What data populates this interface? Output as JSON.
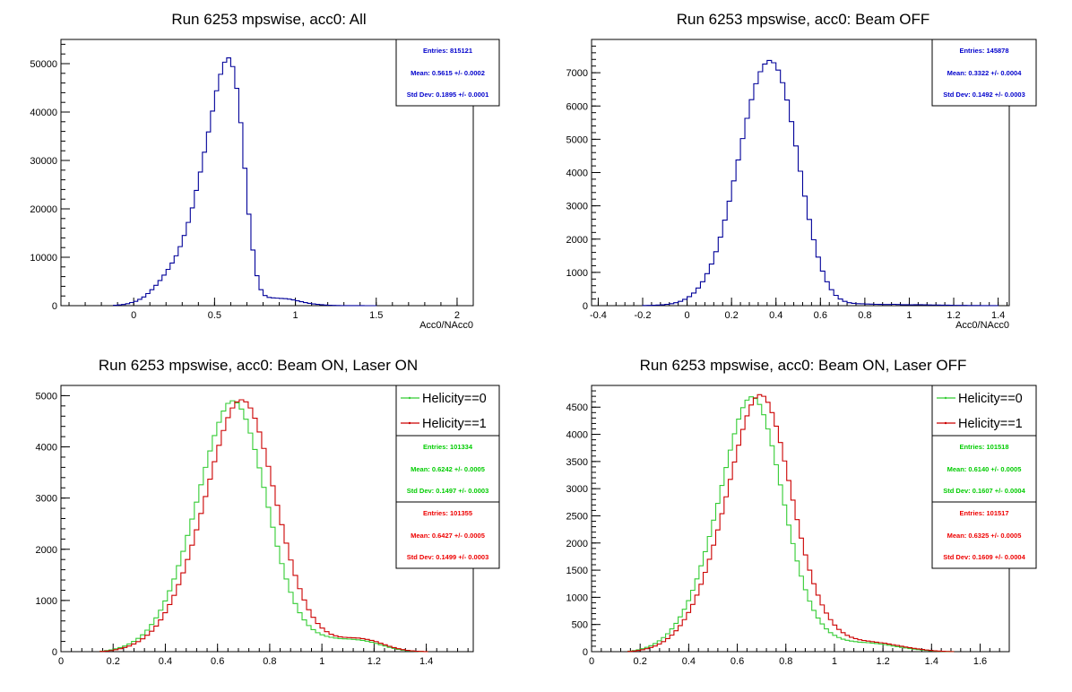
{
  "colors": {
    "blue": "#000099",
    "green": "#33cc33",
    "red": "#cc0000",
    "stat_green": "#00cc00",
    "stat_red": "#ee0000",
    "stat_blue": "#0000cc"
  },
  "chart_data": [
    {
      "type": "histogram",
      "title": "Run 6253 mpswise, acc0: All",
      "xlabel": "Acc0/NAcc0",
      "ylabel": "",
      "xlim": [
        -0.45,
        2.1
      ],
      "ylim": [
        0,
        55000
      ],
      "xticks": [
        0,
        0.5,
        1,
        1.5,
        2
      ],
      "xtick_labels": [
        "0",
        "0.5",
        "1",
        "1.5",
        "2"
      ],
      "yticks": [
        0,
        10000,
        20000,
        30000,
        40000,
        50000
      ],
      "ytick_labels": [
        "0",
        "10000",
        "20000",
        "30000",
        "40000",
        "50000"
      ],
      "series": [
        {
          "color": "blue",
          "bin_width": 0.025,
          "bin_edges": [
            -0.125,
            1.5
          ],
          "values": [
            80,
            150,
            250,
            400,
            650,
            900,
            1300,
            1800,
            2500,
            3300,
            4200,
            5200,
            6300,
            7500,
            8800,
            10300,
            12200,
            14500,
            17200,
            20200,
            23800,
            27600,
            31700,
            35900,
            40200,
            44400,
            47800,
            50300,
            51200,
            49400,
            44900,
            37800,
            28400,
            18900,
            11500,
            6200,
            3300,
            2100,
            1700,
            1600,
            1550,
            1500,
            1450,
            1350,
            1200,
            1000,
            820,
            640,
            480,
            360,
            260,
            190,
            130,
            90,
            60,
            40,
            25,
            15,
            10,
            8,
            5,
            3,
            2,
            1,
            1
          ]
        }
      ],
      "stats": [
        {
          "color": "stat_blue",
          "entries": "Entries: 815121",
          "mean": "Mean: 0.5615 +/- 0.0002",
          "std": "Std Dev: 0.1895 +/- 0.0001"
        }
      ]
    },
    {
      "type": "histogram",
      "title": "Run 6253 mpswise, acc0: Beam OFF",
      "xlabel": "Acc0/NAcc0",
      "ylabel": "",
      "xlim": [
        -0.43,
        1.45
      ],
      "ylim": [
        0,
        8000
      ],
      "xticks": [
        -0.4,
        -0.2,
        0,
        0.2,
        0.4,
        0.6,
        0.8,
        1,
        1.2,
        1.4
      ],
      "xtick_labels": [
        "-0.4",
        "-0.2",
        "0",
        "0.2",
        "0.4",
        "0.6",
        "0.8",
        "1",
        "1.2",
        "1.4"
      ],
      "yticks": [
        0,
        1000,
        2000,
        3000,
        4000,
        5000,
        6000,
        7000
      ],
      "ytick_labels": [
        "0",
        "1000",
        "2000",
        "3000",
        "4000",
        "5000",
        "6000",
        "7000"
      ],
      "series": [
        {
          "color": "blue",
          "bin_width": 0.02,
          "bin_edges": [
            -0.2,
            1.4
          ],
          "values": [
            5,
            8,
            12,
            18,
            25,
            40,
            60,
            90,
            130,
            190,
            270,
            380,
            530,
            720,
            960,
            1250,
            1620,
            2060,
            2570,
            3140,
            3750,
            4380,
            5020,
            5630,
            6190,
            6670,
            7030,
            7260,
            7370,
            7300,
            7080,
            6700,
            6180,
            5530,
            4800,
            4040,
            3290,
            2590,
            1980,
            1460,
            1040,
            720,
            480,
            310,
            200,
            130,
            90,
            70,
            60,
            55,
            50,
            45,
            40,
            38,
            35,
            35,
            40,
            35,
            30,
            28,
            25,
            30,
            28,
            25,
            22,
            20,
            18,
            16,
            14,
            12,
            10,
            9,
            8,
            6,
            5,
            4,
            3,
            2,
            2,
            1
          ]
        }
      ],
      "stats": [
        {
          "color": "stat_blue",
          "entries": "Entries: 145878",
          "mean": "Mean: 0.3322 +/- 0.0004",
          "std": "Std Dev: 0.1492 +/- 0.0003"
        }
      ]
    },
    {
      "type": "histogram",
      "title": "Run 6253 mpswise, acc0: Beam ON, Laser ON",
      "xlabel": "",
      "ylabel": "",
      "xlim": [
        0,
        1.58
      ],
      "ylim": [
        0,
        5200
      ],
      "xticks": [
        0,
        0.2,
        0.4,
        0.6,
        0.8,
        1,
        1.2,
        1.4
      ],
      "xtick_labels": [
        "0",
        "0.2",
        "0.4",
        "0.6",
        "0.8",
        "1",
        "1.2",
        "1.4"
      ],
      "yticks": [
        0,
        1000,
        2000,
        3000,
        4000,
        5000
      ],
      "ytick_labels": [
        "0",
        "1000",
        "2000",
        "3000",
        "4000",
        "5000"
      ],
      "series": [
        {
          "name": "Helicity==0",
          "color": "green",
          "bin_width": 0.0172,
          "bin_edges": [
            0.15,
            1.4
          ],
          "values": [
            10,
            20,
            35,
            55,
            80,
            110,
            150,
            200,
            260,
            330,
            420,
            530,
            660,
            810,
            990,
            1190,
            1420,
            1680,
            1960,
            2270,
            2590,
            2920,
            3260,
            3600,
            3920,
            4220,
            4480,
            4700,
            4850,
            4900,
            4860,
            4740,
            4540,
            4270,
            3950,
            3590,
            3210,
            2820,
            2430,
            2060,
            1720,
            1420,
            1160,
            940,
            760,
            620,
            510,
            430,
            370,
            330,
            300,
            280,
            265,
            255,
            250,
            245,
            240,
            230,
            220,
            205,
            185,
            160,
            135,
            110,
            85,
            65,
            45,
            30,
            20,
            12,
            7,
            4,
            2
          ]
        },
        {
          "name": "Helicity==1",
          "color": "red",
          "bin_width": 0.0172,
          "bin_edges": [
            0.15,
            1.4
          ],
          "values": [
            5,
            12,
            22,
            38,
            58,
            82,
            110,
            150,
            195,
            250,
            320,
            400,
            500,
            620,
            760,
            920,
            1100,
            1310,
            1540,
            1800,
            2080,
            2380,
            2700,
            3030,
            3370,
            3710,
            4030,
            4320,
            4570,
            4760,
            4880,
            4920,
            4880,
            4760,
            4560,
            4290,
            3970,
            3620,
            3240,
            2860,
            2480,
            2120,
            1790,
            1490,
            1230,
            1010,
            820,
            670,
            550,
            460,
            390,
            340,
            310,
            290,
            280,
            275,
            270,
            265,
            255,
            240,
            220,
            195,
            165,
            135,
            105,
            80,
            58,
            40,
            26,
            16,
            9,
            5,
            2
          ]
        }
      ],
      "stats": [
        {
          "color": "stat_green",
          "entries": "Entries: 101334",
          "mean": "Mean: 0.6242 +/- 0.0005",
          "std": "Std Dev: 0.1497 +/- 0.0003"
        },
        {
          "color": "stat_red",
          "entries": "Entries: 101355",
          "mean": "Mean: 0.6427 +/- 0.0005",
          "std": "Std Dev: 0.1499 +/- 0.0003"
        }
      ]
    },
    {
      "type": "histogram",
      "title": "Run 6253 mpswise, acc0: Beam ON, Laser OFF",
      "xlabel": "",
      "ylabel": "",
      "xlim": [
        0,
        1.72
      ],
      "ylim": [
        0,
        4900
      ],
      "xticks": [
        0,
        0.2,
        0.4,
        0.6,
        0.8,
        1,
        1.2,
        1.4,
        1.6
      ],
      "xtick_labels": [
        "0",
        "0.2",
        "0.4",
        "0.6",
        "0.8",
        "1",
        "1.2",
        "1.4",
        "1.6"
      ],
      "yticks": [
        0,
        500,
        1000,
        1500,
        2000,
        2500,
        3000,
        3500,
        4000,
        4500
      ],
      "ytick_labels": [
        "0",
        "500",
        "1000",
        "1500",
        "2000",
        "2500",
        "3000",
        "3500",
        "4000",
        "4500"
      ],
      "series": [
        {
          "name": "Helicity==0",
          "color": "green",
          "bin_width": 0.0172,
          "bin_edges": [
            0.15,
            1.5
          ],
          "values": [
            10,
            20,
            35,
            55,
            80,
            110,
            150,
            200,
            260,
            330,
            420,
            520,
            640,
            780,
            940,
            1130,
            1340,
            1580,
            1840,
            2120,
            2420,
            2730,
            3060,
            3390,
            3710,
            4010,
            4280,
            4490,
            4630,
            4690,
            4660,
            4550,
            4360,
            4100,
            3790,
            3440,
            3070,
            2700,
            2330,
            1990,
            1670,
            1390,
            1140,
            930,
            760,
            620,
            510,
            420,
            350,
            300,
            260,
            230,
            210,
            195,
            185,
            175,
            170,
            165,
            158,
            150,
            140,
            130,
            118,
            105,
            92,
            80,
            68,
            57,
            47,
            38,
            30,
            23,
            17,
            12,
            8,
            5,
            3,
            2
          ]
        },
        {
          "name": "Helicity==1",
          "color": "red",
          "bin_width": 0.0172,
          "bin_edges": [
            0.15,
            1.5
          ],
          "values": [
            5,
            12,
            22,
            36,
            55,
            78,
            105,
            140,
            185,
            240,
            305,
            385,
            480,
            590,
            720,
            870,
            1040,
            1240,
            1460,
            1700,
            1960,
            2240,
            2540,
            2850,
            3170,
            3490,
            3800,
            4090,
            4340,
            4540,
            4670,
            4730,
            4700,
            4590,
            4400,
            4150,
            3850,
            3510,
            3150,
            2790,
            2430,
            2090,
            1780,
            1500,
            1250,
            1040,
            860,
            710,
            590,
            490,
            410,
            350,
            300,
            265,
            240,
            220,
            205,
            195,
            185,
            175,
            165,
            155,
            142,
            128,
            114,
            100,
            86,
            73,
            61,
            50,
            40,
            31,
            23,
            16,
            11,
            7,
            4,
            2
          ]
        }
      ],
      "stats": [
        {
          "color": "stat_green",
          "entries": "Entries: 101518",
          "mean": "Mean: 0.6140 +/- 0.0005",
          "std": "Std Dev: 0.1607 +/- 0.0004"
        },
        {
          "color": "stat_red",
          "entries": "Entries: 101517",
          "mean": "Mean: 0.6325 +/- 0.0005",
          "std": "Std Dev: 0.1609 +/- 0.0004"
        }
      ]
    }
  ]
}
